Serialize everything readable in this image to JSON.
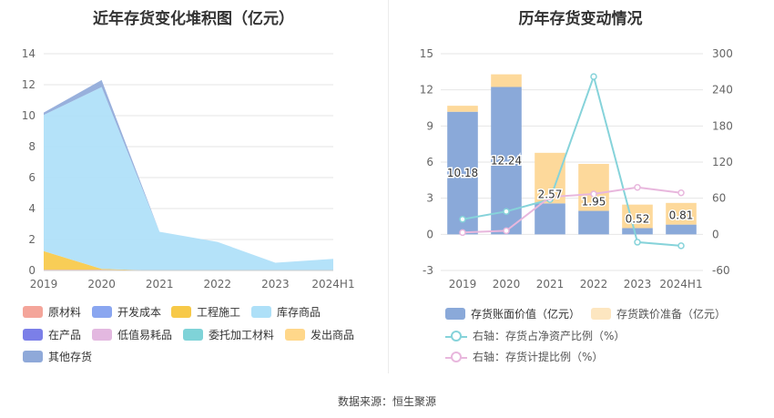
{
  "page": {
    "left_title": "近年存货变化堆积图（亿元）",
    "right_title": "历年存货变动情况",
    "footer": "数据来源：恒生聚源"
  },
  "chart_data": [
    {
      "type": "area",
      "stacked": true,
      "title": "近年存货变化堆积图（亿元）",
      "x": [
        "2019",
        "2020",
        "2021",
        "2022",
        "2023",
        "2024H1"
      ],
      "y_ticks": [
        "0",
        "2",
        "4",
        "6",
        "8",
        "10",
        "12",
        "14"
      ],
      "ylim": [
        0,
        14
      ],
      "series": [
        {
          "name": "原材料",
          "color": "#f4a59a",
          "values": [
            0.05,
            0.05,
            0.0,
            0.0,
            0.0,
            0.0
          ]
        },
        {
          "name": "开发成本",
          "color": "#8aa6f0",
          "values": [
            0.0,
            0.0,
            0.0,
            0.0,
            0.0,
            0.0
          ]
        },
        {
          "name": "工程施工",
          "color": "#f7c948",
          "values": [
            1.2,
            0.05,
            0.0,
            0.0,
            0.0,
            0.0
          ]
        },
        {
          "name": "库存商品",
          "color": "#aee0f8",
          "values": [
            8.8,
            11.75,
            2.5,
            1.85,
            0.5,
            0.75
          ]
        },
        {
          "name": "在产品",
          "color": "#7b7fe8",
          "values": [
            0.0,
            0.0,
            0.0,
            0.0,
            0.0,
            0.0
          ]
        },
        {
          "name": "低值易耗品",
          "color": "#e3b8e0",
          "values": [
            0.0,
            0.0,
            0.0,
            0.0,
            0.0,
            0.0
          ]
        },
        {
          "name": "委托加工材料",
          "color": "#7fd3d8",
          "values": [
            0.0,
            0.0,
            0.0,
            0.0,
            0.0,
            0.0
          ]
        },
        {
          "name": "发出商品",
          "color": "#ffd78a",
          "values": [
            0.0,
            0.0,
            0.0,
            0.0,
            0.0,
            0.0
          ]
        },
        {
          "name": "其他存货",
          "color": "#8fa9d9",
          "values": [
            0.15,
            0.45,
            0.0,
            0.0,
            0.0,
            0.0
          ]
        }
      ],
      "legend_placement": "bottom",
      "grid": true
    },
    {
      "type": "bar",
      "title": "历年存货变动情况",
      "categories": [
        "2019",
        "2020",
        "2021",
        "2022",
        "2023",
        "2024H1"
      ],
      "y_left_ticks": [
        "-3",
        "0",
        "3",
        "6",
        "9",
        "12",
        "15"
      ],
      "y_right_ticks": [
        "-60",
        "0",
        "60",
        "120",
        "180",
        "240",
        "300"
      ],
      "ylim_left": [
        -3,
        15
      ],
      "ylim_right": [
        -60,
        300
      ],
      "series": [
        {
          "name": "存货账面价值（亿元）",
          "axis": "left",
          "kind": "bar",
          "color": "#8aa9d9",
          "values": [
            10.18,
            12.24,
            2.57,
            1.95,
            0.52,
            0.81
          ],
          "labels": [
            "10.18",
            "12.24",
            "2.57",
            "1.95",
            "0.52",
            "0.81"
          ]
        },
        {
          "name": "存货跌价准备（亿元）",
          "axis": "left",
          "kind": "bar-stack",
          "color": "#fdd99b",
          "values": [
            0.5,
            1.05,
            4.2,
            3.9,
            1.95,
            1.8
          ]
        },
        {
          "name": "右轴：存货占净资产比例（%）",
          "axis": "right",
          "kind": "line",
          "color": "#86d3da",
          "values": [
            25,
            38,
            58,
            262,
            -13,
            -19
          ]
        },
        {
          "name": "右轴：存货计提比例（%）",
          "axis": "right",
          "kind": "line",
          "color": "#e8b7dd",
          "values": [
            3,
            6,
            62,
            67,
            78,
            69
          ]
        }
      ],
      "legend_placement": "bottom",
      "grid": true
    }
  ]
}
